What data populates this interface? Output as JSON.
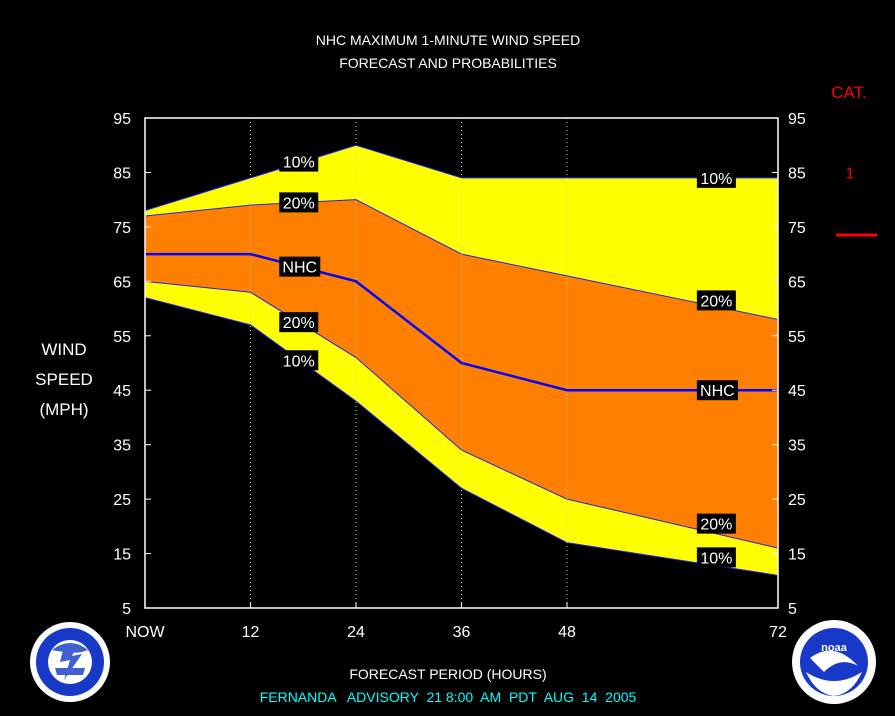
{
  "chart_data": {
    "type": "area",
    "title": "NHC MAXIMUM 1-MINUTE WIND SPEED",
    "subtitle": "FORECAST AND PROBABILITIES",
    "xlabel": "FORECAST PERIOD (HOURS)",
    "ylabel_lines": [
      "WIND",
      "SPEED",
      "(MPH)"
    ],
    "footer": "FERNANDA   ADVISORY  21 8:00  AM  PDT  AUG  14  2005",
    "x_ticks": [
      {
        "x": 0,
        "label": "NOW"
      },
      {
        "x": 12,
        "label": "12"
      },
      {
        "x": 24,
        "label": "24"
      },
      {
        "x": 36,
        "label": "36"
      },
      {
        "x": 48,
        "label": "48"
      },
      {
        "x": 72,
        "label": "72"
      }
    ],
    "y_ticks": [
      5,
      15,
      25,
      35,
      45,
      55,
      65,
      75,
      85,
      95
    ],
    "xlim": [
      0,
      72
    ],
    "ylim": [
      5,
      95
    ],
    "grid_x": [
      12,
      24,
      36,
      48
    ],
    "x": [
      0,
      12,
      24,
      36,
      48,
      72
    ],
    "series": [
      {
        "name": "10%",
        "band": "upper",
        "color": "#ffff00",
        "values": [
          78,
          84,
          90,
          84,
          84,
          84
        ]
      },
      {
        "name": "20%",
        "band": "upper",
        "color": "#ff8000",
        "values": [
          77,
          79,
          80,
          70,
          66,
          58
        ]
      },
      {
        "name": "NHC",
        "band": "line",
        "color": "#0000ff",
        "values": [
          70,
          70,
          65,
          50,
          45,
          45
        ]
      },
      {
        "name": "20%",
        "band": "lower",
        "color": "#ff8000",
        "values": [
          65,
          63,
          51,
          34,
          25,
          16
        ]
      },
      {
        "name": "10%",
        "band": "lower",
        "color": "#ffff00",
        "values": [
          62,
          57,
          43,
          27,
          17,
          11
        ]
      }
    ],
    "labels": [
      {
        "text": "10%",
        "x": 15.5,
        "y": 87
      },
      {
        "text": "20%",
        "x": 15.5,
        "y": 79.5
      },
      {
        "text": "NHC",
        "x": 15.5,
        "y": 67.7
      },
      {
        "text": "20%",
        "x": 15.5,
        "y": 57.5
      },
      {
        "text": "10%",
        "x": 15.5,
        "y": 50.5
      },
      {
        "text": "10%",
        "x": 63,
        "y": 84
      },
      {
        "text": "20%",
        "x": 63,
        "y": 61.5
      },
      {
        "text": "NHC",
        "x": 63,
        "y": 45
      },
      {
        "text": "20%",
        "x": 63,
        "y": 20.5
      },
      {
        "text": "10%",
        "x": 63,
        "y": 14.3
      }
    ],
    "category": {
      "header": "CAT.",
      "items": [
        {
          "label": "1",
          "y": 85
        },
        {
          "label": "",
          "y": 74
        }
      ],
      "color": "#ff0000"
    }
  }
}
